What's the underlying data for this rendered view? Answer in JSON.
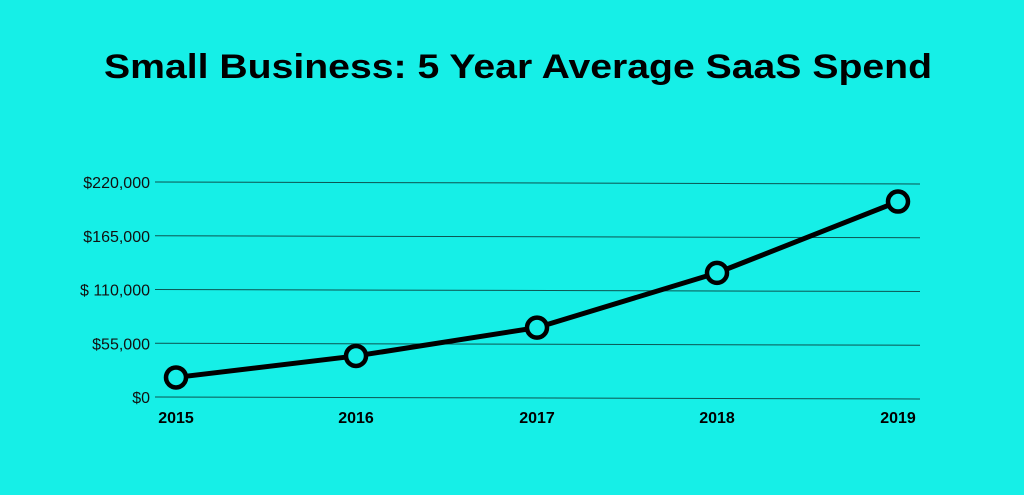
{
  "colors": {
    "background": "#16efe7",
    "line": "#000000",
    "marker_fill": "#16efe7",
    "grid": "#0b5552"
  },
  "chart_data": {
    "type": "line",
    "title": "Small Business: 5 Year Average SaaS Spend",
    "xlabel": "",
    "ylabel": "",
    "categories": [
      "2015",
      "2016",
      "2017",
      "2018",
      "2019"
    ],
    "series": [
      {
        "values": [
          20000,
          42000,
          71000,
          127000,
          200000
        ]
      }
    ],
    "yticks": [
      0,
      55000,
      110000,
      165000,
      220000
    ],
    "ytick_labels": [
      "$0",
      "$55,000",
      "$ 110,000",
      "$165,000",
      "$220,000"
    ],
    "ylim": [
      0,
      220000
    ],
    "grid": true,
    "marker": "hollow-circle"
  }
}
